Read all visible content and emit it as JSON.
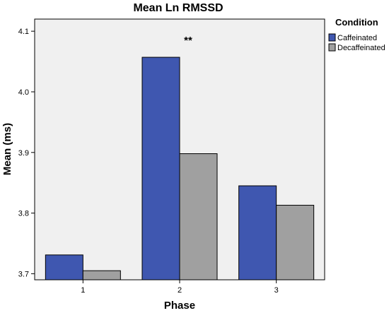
{
  "chart_data": {
    "type": "bar",
    "title": "Mean Ln RMSSD",
    "xlabel": "Phase",
    "ylabel": "Mean (ms)",
    "categories": [
      "1",
      "2",
      "3"
    ],
    "series": [
      {
        "name": "Caffeinated",
        "color": "#3f57b0",
        "values": [
          3.731,
          4.057,
          3.845
        ]
      },
      {
        "name": "Decaffeinated",
        "color": "#a0a0a0",
        "values": [
          3.705,
          3.898,
          3.813
        ]
      }
    ],
    "ylim": [
      3.69,
      4.12
    ],
    "yticks": [
      "3.7",
      "3.8",
      "3.9",
      "4.0",
      "4.1"
    ],
    "legend": {
      "title": "Condition",
      "position": "top-right"
    },
    "annotations": [
      {
        "text": "**",
        "category": "2"
      }
    ],
    "plot_background": "#f0f0f0",
    "grid": false
  }
}
